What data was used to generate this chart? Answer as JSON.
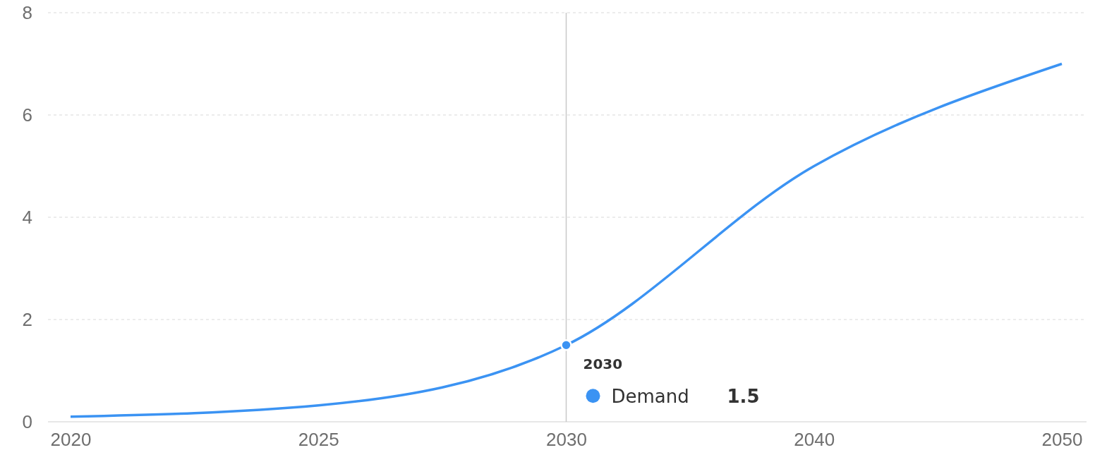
{
  "chart_data": {
    "type": "line",
    "categories": [
      "2020",
      "2025",
      "2030",
      "2040",
      "2050"
    ],
    "series": [
      {
        "name": "Demand",
        "color": "#3b93f3",
        "values": [
          0.1,
          0.32,
          1.5,
          5,
          7
        ]
      }
    ],
    "ylim": [
      0,
      8
    ],
    "yticks": [
      0,
      2,
      4,
      6,
      8
    ],
    "grid": "y",
    "legend": "bottom",
    "annotations": [
      "1.5"
    ],
    "marker": "none",
    "line_style": "solid",
    "ref_lines": [
      {
        "axis": "x",
        "value": "2030",
        "color": "#c8c8c8"
      }
    ]
  }
}
